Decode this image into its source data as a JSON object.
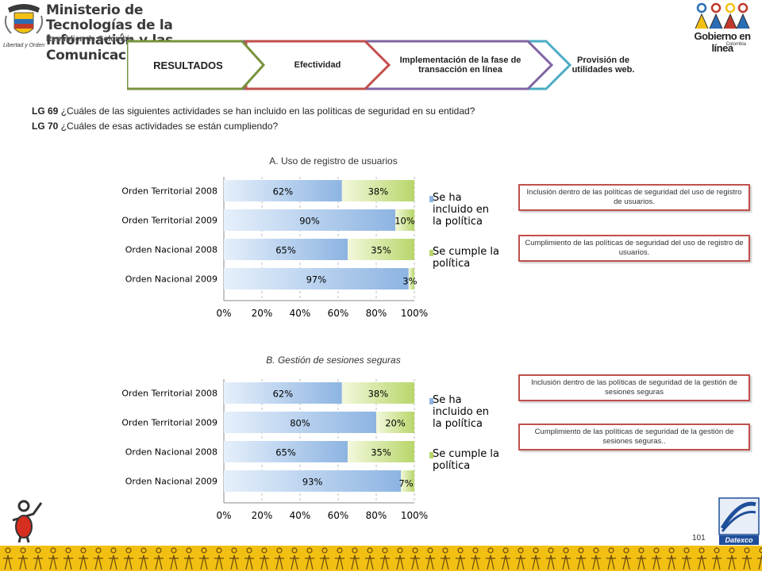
{
  "header": {
    "ministry_title_line1": "Ministerio de Tecnologías de la",
    "ministry_title_line2": "Información y las Comunicaciones",
    "ministry_subtitle": "República de Colombia",
    "ministry_motto": "Libertad y Orden",
    "gel_logo_text": "Gobierno en línea",
    "gel_logo_sub": "Colombia"
  },
  "tabs": [
    {
      "label": "RESULTADOS",
      "color": "#77933c"
    },
    {
      "label": "Efectividad",
      "color": "#c0504d"
    },
    {
      "label": "Implementación de la fase de transacción en línea",
      "color": "#8064a2"
    },
    {
      "label": "Provisión de utilidades web.",
      "color": "#4bacc6"
    }
  ],
  "questions": [
    {
      "code": "LG 69",
      "text": "¿Cuáles  de las siguientes actividades se han incluido en las políticas de seguridad en su entidad?"
    },
    {
      "code": "LG 70",
      "text": "¿Cuáles  de esas actividades se están cumpliendo?"
    }
  ],
  "colors": {
    "series1": "#8db4e2",
    "series2": "#b8d66a",
    "note_border": "#c0504d"
  },
  "chart_data": [
    {
      "type": "bar",
      "orientation": "horizontal",
      "stacked": true,
      "title": "A. Uso de registro de usuarios",
      "categories": [
        "Orden Territorial 2008",
        "Orden Territorial 2009",
        "Orden Nacional 2008",
        "Orden Nacional 2009"
      ],
      "series": [
        {
          "name": "Se ha incluido en la política",
          "values": [
            62,
            90,
            65,
            97
          ],
          "labels": [
            "62%",
            "90%",
            "65%",
            "97%"
          ]
        },
        {
          "name": "Se cumple la política",
          "values": [
            38,
            10,
            35,
            3
          ],
          "labels": [
            "38%",
            "10%",
            "35%",
            "3%"
          ]
        }
      ],
      "xlim": [
        0,
        100
      ],
      "xticks": [
        "0%",
        "20%",
        "40%",
        "60%",
        "80%",
        "100%"
      ],
      "legend": "right",
      "notes": [
        "Inclusión dentro de las políticas de seguridad del uso de registro de usuarios.",
        "Cumplimiento de las políticas de seguridad del uso de registro de usuarios."
      ]
    },
    {
      "type": "bar",
      "orientation": "horizontal",
      "stacked": true,
      "title": "B. Gestión de sesiones seguras",
      "categories": [
        "Orden Territorial 2008",
        "Orden Territorial 2009",
        "Orden Nacional 2008",
        "Orden Nacional 2009"
      ],
      "series": [
        {
          "name": "Se ha incluido en la política",
          "values": [
            62,
            80,
            65,
            93
          ],
          "labels": [
            "62%",
            "80%",
            "65%",
            "93%"
          ]
        },
        {
          "name": "Se cumple la política",
          "values": [
            38,
            20,
            35,
            7
          ],
          "labels": [
            "38%",
            "20%",
            "35%",
            "7%"
          ]
        }
      ],
      "xlim": [
        0,
        100
      ],
      "xticks": [
        "0%",
        "20%",
        "40%",
        "60%",
        "80%",
        "100%"
      ],
      "legend": "right",
      "notes": [
        "Inclusión dentro de las políticas de seguridad de la gestión de sesiones seguras",
        "Cumplimiento de las políticas de seguridad de la gestión de sesiones seguras.."
      ]
    }
  ],
  "footer": {
    "page_number": "101",
    "datexco_text": "Datexco"
  }
}
